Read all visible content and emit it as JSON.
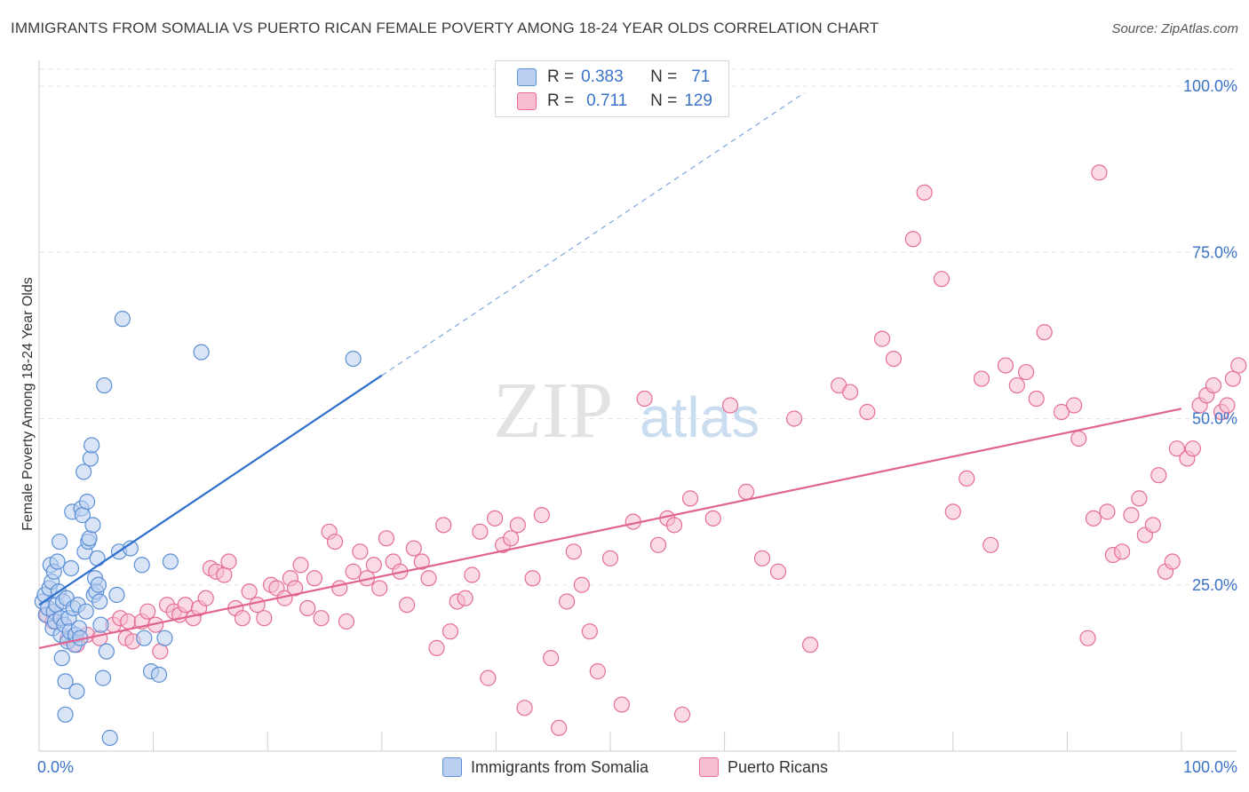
{
  "header": {
    "title": "IMMIGRANTS FROM SOMALIA VS PUERTO RICAN FEMALE POVERTY AMONG 18-24 YEAR OLDS CORRELATION CHART",
    "source": "Source: ZipAtlas.com"
  },
  "legend": {
    "somalia": {
      "r_label": "R =",
      "r_value": "0.383",
      "n_label": "N =",
      "n_value": "71"
    },
    "puerto": {
      "r_label": "R =",
      "r_value": "0.711",
      "n_label": "N =",
      "n_value": "129"
    }
  },
  "watermark": {
    "zip": "ZIP",
    "atlas": "atlas"
  },
  "chart_data": {
    "type": "scatter",
    "title": "IMMIGRANTS FROM SOMALIA VS PUERTO RICAN FEMALE POVERTY AMONG 18-24 YEAR OLDS CORRELATION CHART",
    "xlabel": "",
    "ylabel": "Female Poverty Among 18-24 Year Olds",
    "xlim": [
      0,
      100
    ],
    "ylim": [
      0,
      100
    ],
    "x_tick_labels": [
      "0.0%",
      "100.0%"
    ],
    "y_tick_labels": [
      "25.0%",
      "50.0%",
      "75.0%",
      "100.0%"
    ],
    "y_ticks": [
      25,
      50,
      75,
      100
    ],
    "grid": true,
    "legend_placement": "bottom",
    "colors": {
      "somalia": "#5b8fd6",
      "somalia_fill": "#b9d0f0",
      "puerto": "#e56d98",
      "puerto_fill": "#f6bed0"
    },
    "series": [
      {
        "name": "Immigrants from Somalia",
        "r": 0.383,
        "n": 71,
        "trend": {
          "x": [
            0,
            30
          ],
          "y": [
            22,
            56.5
          ],
          "extended_to": [
            67,
            99
          ]
        },
        "points": [
          [
            0.3,
            22.5
          ],
          [
            0.5,
            23.5
          ],
          [
            0.6,
            20.5
          ],
          [
            0.8,
            21.5
          ],
          [
            0.9,
            24.5
          ],
          [
            1.0,
            28
          ],
          [
            1.1,
            25.5
          ],
          [
            1.2,
            18.5
          ],
          [
            1.3,
            21
          ],
          [
            1.3,
            27
          ],
          [
            1.4,
            19.5
          ],
          [
            1.5,
            22
          ],
          [
            1.6,
            28.5
          ],
          [
            1.7,
            24
          ],
          [
            1.8,
            31.5
          ],
          [
            1.9,
            17.5
          ],
          [
            1.9,
            20
          ],
          [
            2.0,
            14
          ],
          [
            2.1,
            22.5
          ],
          [
            2.2,
            19
          ],
          [
            2.3,
            10.5
          ],
          [
            2.3,
            5.5
          ],
          [
            2.4,
            23
          ],
          [
            2.5,
            16.5
          ],
          [
            2.6,
            20
          ],
          [
            2.7,
            18
          ],
          [
            2.8,
            27.5
          ],
          [
            2.9,
            36
          ],
          [
            3.0,
            21.5
          ],
          [
            3.1,
            16
          ],
          [
            3.2,
            17.5
          ],
          [
            3.3,
            9
          ],
          [
            3.4,
            22
          ],
          [
            3.5,
            18.5
          ],
          [
            3.6,
            17
          ],
          [
            3.7,
            36.5
          ],
          [
            3.8,
            35.5
          ],
          [
            3.9,
            42
          ],
          [
            4.0,
            30
          ],
          [
            4.1,
            21
          ],
          [
            4.2,
            37.5
          ],
          [
            4.3,
            31.5
          ],
          [
            4.4,
            32
          ],
          [
            4.5,
            44
          ],
          [
            4.6,
            46
          ],
          [
            4.7,
            34
          ],
          [
            4.8,
            23.5
          ],
          [
            4.9,
            26
          ],
          [
            5.0,
            24
          ],
          [
            5.1,
            29
          ],
          [
            5.2,
            25
          ],
          [
            5.3,
            22.5
          ],
          [
            5.4,
            19
          ],
          [
            5.6,
            11
          ],
          [
            5.7,
            55
          ],
          [
            5.9,
            15
          ],
          [
            6.2,
            2
          ],
          [
            6.8,
            23.5
          ],
          [
            7.0,
            30
          ],
          [
            7.3,
            65
          ],
          [
            8.0,
            30.5
          ],
          [
            9.0,
            28
          ],
          [
            9.2,
            17
          ],
          [
            9.8,
            12
          ],
          [
            10.5,
            11.5
          ],
          [
            11,
            17
          ],
          [
            11.5,
            28.5
          ],
          [
            14.2,
            60
          ],
          [
            27.5,
            59
          ]
        ]
      },
      {
        "name": "Puerto Ricans",
        "r": 0.711,
        "n": 129,
        "trend": {
          "x": [
            0,
            100
          ],
          "y": [
            15.5,
            51.5
          ]
        },
        "points": [
          [
            0.7,
            20.5
          ],
          [
            1.2,
            19.5
          ],
          [
            2.5,
            17
          ],
          [
            3.3,
            16
          ],
          [
            4.2,
            17.5
          ],
          [
            5.3,
            17
          ],
          [
            6.5,
            19
          ],
          [
            7.1,
            20
          ],
          [
            7.6,
            17
          ],
          [
            7.8,
            19.5
          ],
          [
            8.2,
            16.5
          ],
          [
            9.0,
            19.5
          ],
          [
            9.5,
            21
          ],
          [
            10.2,
            19
          ],
          [
            10.6,
            15
          ],
          [
            11.2,
            22
          ],
          [
            11.8,
            21
          ],
          [
            12.3,
            20.5
          ],
          [
            12.8,
            22
          ],
          [
            13.5,
            20
          ],
          [
            14.0,
            21.5
          ],
          [
            14.6,
            23
          ],
          [
            15.0,
            27.5
          ],
          [
            15.5,
            27
          ],
          [
            16.2,
            26.5
          ],
          [
            16.6,
            28.5
          ],
          [
            17.2,
            21.5
          ],
          [
            17.8,
            20
          ],
          [
            18.4,
            24
          ],
          [
            19.1,
            22
          ],
          [
            19.7,
            20
          ],
          [
            20.3,
            25
          ],
          [
            20.8,
            24.5
          ],
          [
            21.5,
            23
          ],
          [
            22.0,
            26
          ],
          [
            22.4,
            24.5
          ],
          [
            22.9,
            28
          ],
          [
            23.5,
            21.5
          ],
          [
            24.1,
            26
          ],
          [
            24.7,
            20
          ],
          [
            25.4,
            33
          ],
          [
            25.9,
            31.5
          ],
          [
            26.3,
            24.5
          ],
          [
            26.9,
            19.5
          ],
          [
            27.5,
            27
          ],
          [
            28.1,
            30
          ],
          [
            28.7,
            26
          ],
          [
            29.3,
            28
          ],
          [
            29.8,
            24.5
          ],
          [
            30.4,
            32
          ],
          [
            31.0,
            28.5
          ],
          [
            31.6,
            27
          ],
          [
            32.2,
            22
          ],
          [
            32.8,
            30.5
          ],
          [
            33.5,
            28.5
          ],
          [
            34.1,
            26
          ],
          [
            34.8,
            15.5
          ],
          [
            35.4,
            34
          ],
          [
            36.0,
            18
          ],
          [
            36.6,
            22.5
          ],
          [
            37.3,
            23
          ],
          [
            37.9,
            26.5
          ],
          [
            38.6,
            33
          ],
          [
            39.3,
            11
          ],
          [
            39.9,
            35
          ],
          [
            40.6,
            31
          ],
          [
            41.3,
            32
          ],
          [
            41.9,
            34
          ],
          [
            42.5,
            6.5
          ],
          [
            43.2,
            26
          ],
          [
            44.0,
            35.5
          ],
          [
            44.8,
            14
          ],
          [
            45.5,
            3.5
          ],
          [
            46.2,
            22.5
          ],
          [
            46.8,
            30
          ],
          [
            47.5,
            25
          ],
          [
            48.2,
            18
          ],
          [
            48.9,
            12
          ],
          [
            50.0,
            29
          ],
          [
            51.0,
            7
          ],
          [
            52.0,
            34.5
          ],
          [
            53.0,
            53
          ],
          [
            54.2,
            31
          ],
          [
            55.0,
            35
          ],
          [
            55.6,
            34
          ],
          [
            56.3,
            5.5
          ],
          [
            57.0,
            38
          ],
          [
            59.0,
            35
          ],
          [
            60.5,
            52
          ],
          [
            61.9,
            39
          ],
          [
            63.3,
            29
          ],
          [
            64.7,
            27
          ],
          [
            66.1,
            50
          ],
          [
            67.5,
            16
          ],
          [
            70.0,
            55
          ],
          [
            71.0,
            54
          ],
          [
            72.5,
            51
          ],
          [
            73.8,
            62
          ],
          [
            74.8,
            59
          ],
          [
            76.5,
            77
          ],
          [
            77.5,
            84
          ],
          [
            79.0,
            71
          ],
          [
            80.0,
            36
          ],
          [
            81.2,
            41
          ],
          [
            82.5,
            56
          ],
          [
            83.3,
            31
          ],
          [
            84.6,
            58
          ],
          [
            85.6,
            55
          ],
          [
            86.4,
            57
          ],
          [
            87.3,
            53
          ],
          [
            88.0,
            63
          ],
          [
            89.5,
            51
          ],
          [
            90.6,
            52
          ],
          [
            91.0,
            47
          ],
          [
            91.8,
            17
          ],
          [
            92.3,
            35
          ],
          [
            92.8,
            87
          ],
          [
            93.5,
            36
          ],
          [
            94.0,
            29.5
          ],
          [
            94.8,
            30
          ],
          [
            95.6,
            35.5
          ],
          [
            96.3,
            38
          ],
          [
            96.8,
            32.5
          ],
          [
            97.5,
            34
          ],
          [
            98.0,
            41.5
          ],
          [
            98.6,
            27
          ],
          [
            99.2,
            28.5
          ],
          [
            99.6,
            45.5
          ],
          [
            100.5,
            44
          ],
          [
            101,
            45.5
          ],
          [
            101.6,
            52
          ],
          [
            102.2,
            53.5
          ],
          [
            102.8,
            55
          ],
          [
            103.5,
            51
          ],
          [
            104,
            52
          ],
          [
            104.5,
            56
          ],
          [
            105,
            58
          ]
        ]
      }
    ]
  },
  "bottom_legend": [
    {
      "key": "somalia",
      "label": "Immigrants from Somalia"
    },
    {
      "key": "puerto",
      "label": "Puerto Ricans"
    }
  ]
}
